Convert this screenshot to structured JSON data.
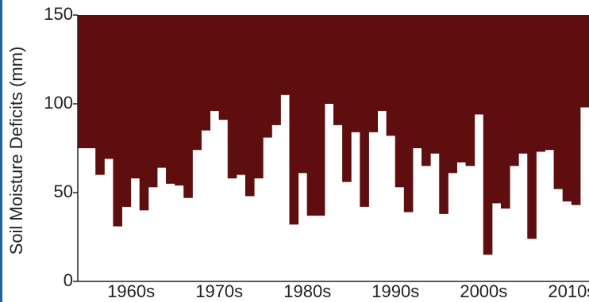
{
  "chart_data": {
    "type": "bar",
    "y_label": "Soil Moisture Deficits (mm)",
    "categories": [
      null,
      null,
      null,
      null,
      null,
      null,
      "1960s",
      null,
      null,
      null,
      null,
      null,
      null,
      null,
      null,
      null,
      "1970s",
      null,
      null,
      null,
      null,
      null,
      null,
      null,
      null,
      null,
      "1980s",
      null,
      null,
      null,
      null,
      null,
      null,
      null,
      null,
      null,
      "1990s",
      null,
      null,
      null,
      null,
      null,
      null,
      null,
      null,
      null,
      "2000s",
      null,
      null,
      null,
      null,
      null,
      null,
      null,
      null,
      null,
      "2010s",
      null
    ],
    "values": [
      75,
      75,
      60,
      69,
      31,
      42,
      58,
      40,
      53,
      64,
      55,
      54,
      47,
      74,
      85,
      96,
      91,
      58,
      60,
      48,
      58,
      81,
      88,
      105,
      32,
      61,
      37,
      37,
      100,
      88,
      56,
      84,
      42,
      84,
      96,
      82,
      53,
      39,
      75,
      65,
      72,
      38,
      61,
      67,
      65,
      94,
      15,
      44,
      41,
      65,
      72,
      24,
      73,
      74,
      52,
      45,
      43,
      98
    ],
    "color": "#5e0e0e",
    "ylim": [
      0,
      150
    ],
    "yticks": [
      0,
      50,
      100,
      150
    ],
    "bar_from": "top"
  }
}
